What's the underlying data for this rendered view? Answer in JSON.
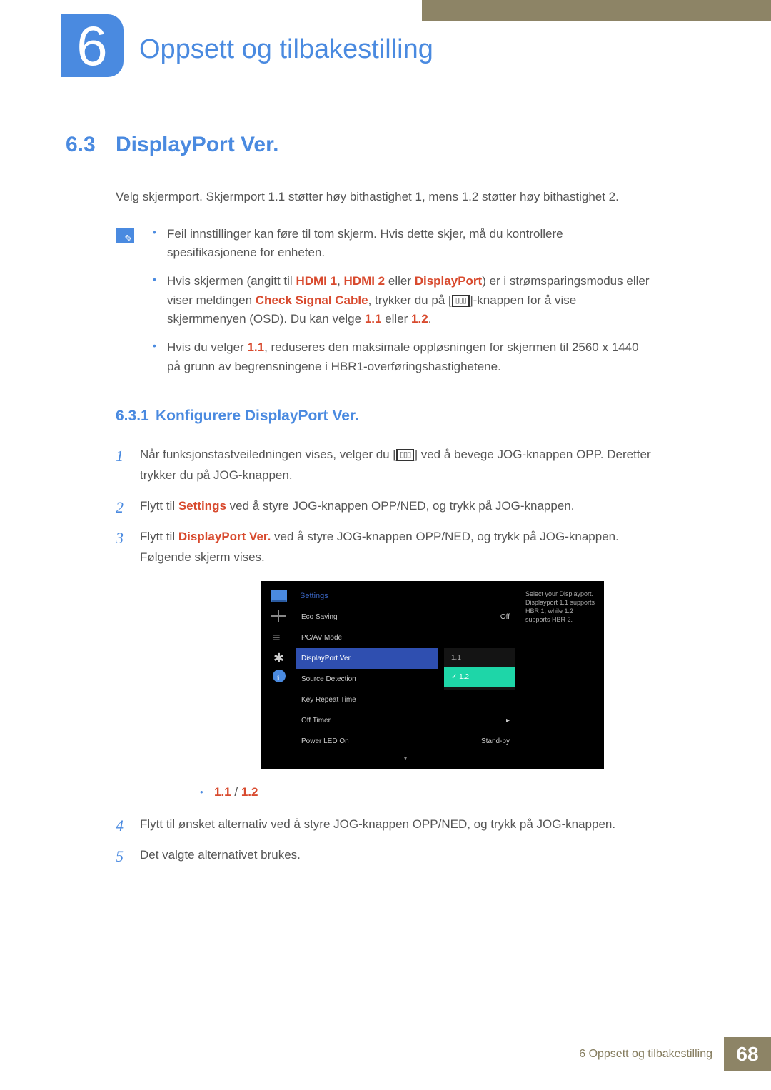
{
  "chapter": {
    "number": "6",
    "title": "Oppsett og tilbakestilling"
  },
  "section": {
    "number": "6.3",
    "title": "DisplayPort Ver.",
    "intro": "Velg skjermport. Skjermport 1.1 støtter høy bithastighet 1, mens 1.2 støtter høy bithastighet 2."
  },
  "notes": {
    "n1": "Feil innstillinger kan føre til tom skjerm. Hvis dette skjer, må du kontrollere spesifikasjonene for enheten.",
    "n2_a": "Hvis skjermen (angitt til ",
    "n2_hdmi1": "HDMI 1",
    "n2_sep1": ", ",
    "n2_hdmi2": "HDMI 2",
    "n2_sep2": " eller ",
    "n2_dp": "DisplayPort",
    "n2_b": ") er i strømsparingsmodus eller viser meldingen ",
    "n2_csc": "Check Signal Cable",
    "n2_c": ", trykker du på [",
    "n2_d": "]-knappen for å vise skjermmenyen (OSD). Du kan velge ",
    "n2_v11": "1.1",
    "n2_e": " eller ",
    "n2_v12": "1.2",
    "n2_f": ".",
    "n3_a": "Hvis du velger ",
    "n3_v11": "1.1",
    "n3_b": ", reduseres den maksimale oppløsningen for skjermen til 2560 x 1440 på grunn av begrensningene i HBR1-overføringshastighetene."
  },
  "subsection": {
    "number": "6.3.1",
    "title": "Konfigurere DisplayPort Ver."
  },
  "steps": {
    "s1a": "Når funksjonstastveiledningen vises, velger du [",
    "s1b": "] ved å bevege JOG-knappen OPP. Deretter trykker du på JOG-knappen.",
    "s2a": "Flytt til ",
    "s2_settings": "Settings",
    "s2b": " ved å styre JOG-knappen OPP/NED, og trykk på JOG-knappen.",
    "s3a": "Flytt til ",
    "s3_dp": "DisplayPort Ver.",
    "s3b": " ved å styre JOG-knappen OPP/NED, og trykk på JOG-knappen. Følgende skjerm vises.",
    "s4": "Flytt til ønsket alternativ ved å styre JOG-knappen OPP/NED, og trykk på JOG-knappen.",
    "s5": "Det valgte alternativet brukes."
  },
  "options": {
    "a": "1.1",
    "sep": " / ",
    "b": "1.2"
  },
  "osd": {
    "title": "Settings",
    "rows": {
      "eco": "Eco Saving",
      "eco_val": "Off",
      "pcav": "PC/AV Mode",
      "dp": "DisplayPort Ver.",
      "src": "Source Detection",
      "key": "Key Repeat Time",
      "off": "Off Timer",
      "pled": "Power LED On",
      "pled_val": "Stand-by"
    },
    "opts": {
      "v11": "1.1",
      "v12": "1.2"
    },
    "help": "Select your Displayport. Displayport 1.1 supports HBR 1, while 1.2 supports HBR 2.",
    "arrow_right": "▸",
    "arrow_down": "▾"
  },
  "footer": {
    "text": "6 Oppsett og tilbakestilling",
    "page": "68"
  },
  "glyph": "▯▯▯"
}
